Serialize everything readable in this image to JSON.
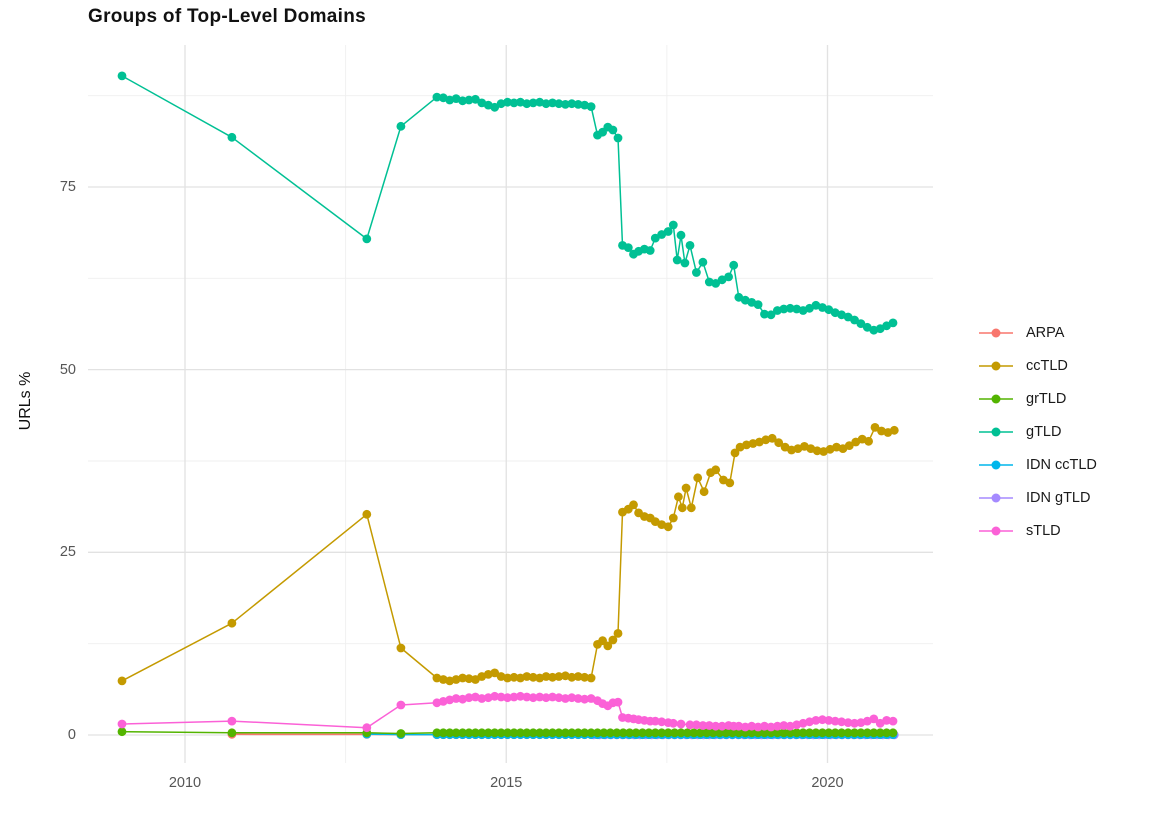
{
  "title": "Groups of Top-Level Domains",
  "axes": {
    "y_label": "URLs %",
    "y_ticks": [
      {
        "value": 0,
        "label": "0"
      },
      {
        "value": 25,
        "label": "25"
      },
      {
        "value": 50,
        "label": "50"
      },
      {
        "value": 75,
        "label": "75"
      }
    ],
    "y_minor": [
      12.5,
      37.5,
      62.5,
      87.5
    ],
    "x_ticks": [
      {
        "year": 2010,
        "label": "2010"
      },
      {
        "year": 2015,
        "label": "2015"
      },
      {
        "year": 2020,
        "label": "2020"
      }
    ],
    "x_minor_years": [
      2012.5,
      2017.5
    ]
  },
  "chart_data": {
    "type": "line",
    "title": "Groups of Top-Level Domains",
    "xlabel": "",
    "ylabel": "URLs %",
    "x_unit": "year",
    "xlim": [
      2008.6,
      2021.6
    ],
    "ylim": [
      0,
      92
    ],
    "grid": true,
    "legend_position": "right",
    "marker": "point",
    "draw_order": [
      "ARPA",
      "IDN gTLD",
      "IDN ccTLD",
      "grTLD",
      "ccTLD",
      "gTLD",
      "sTLD"
    ],
    "series": [
      {
        "name": "ARPA",
        "color": "#F8766D",
        "points": [
          [
            2010.73,
            0.1
          ],
          [
            2012.83,
            0.08
          ],
          [
            2013.36,
            0.05
          ]
        ],
        "runs": [
          {
            "x0": 2013.92,
            "dx": 0.1,
            "count": 72,
            "value": 0.04
          }
        ]
      },
      {
        "name": "ccTLD",
        "color": "#C49A00",
        "points": [
          [
            2009.02,
            7.4
          ],
          [
            2010.73,
            15.3
          ],
          [
            2012.83,
            30.2
          ],
          [
            2013.36,
            11.9
          ],
          [
            2013.92,
            7.8
          ],
          [
            2014.02,
            7.6
          ],
          [
            2014.12,
            7.4
          ],
          [
            2014.22,
            7.6
          ],
          [
            2014.32,
            7.8
          ],
          [
            2014.42,
            7.7
          ],
          [
            2014.52,
            7.6
          ],
          [
            2014.62,
            8.0
          ],
          [
            2014.72,
            8.3
          ],
          [
            2014.82,
            8.5
          ],
          [
            2014.92,
            8.0
          ],
          [
            2015.02,
            7.8
          ],
          [
            2015.12,
            7.9
          ],
          [
            2015.22,
            7.8
          ],
          [
            2015.32,
            8.0
          ],
          [
            2015.42,
            7.9
          ],
          [
            2015.52,
            7.8
          ],
          [
            2015.62,
            8.0
          ],
          [
            2015.72,
            7.9
          ],
          [
            2015.82,
            8.0
          ],
          [
            2015.92,
            8.1
          ],
          [
            2016.02,
            7.9
          ],
          [
            2016.12,
            8.0
          ],
          [
            2016.22,
            7.9
          ],
          [
            2016.32,
            7.8
          ],
          [
            2016.42,
            12.4
          ],
          [
            2016.5,
            12.9
          ],
          [
            2016.58,
            12.2
          ],
          [
            2016.66,
            13.0
          ],
          [
            2016.74,
            13.9
          ],
          [
            2016.81,
            30.5
          ],
          [
            2016.9,
            30.9
          ],
          [
            2016.98,
            31.5
          ],
          [
            2017.06,
            30.4
          ],
          [
            2017.15,
            29.9
          ],
          [
            2017.24,
            29.7
          ],
          [
            2017.32,
            29.2
          ],
          [
            2017.42,
            28.8
          ],
          [
            2017.52,
            28.5
          ],
          [
            2017.6,
            29.7
          ],
          [
            2017.68,
            32.6
          ],
          [
            2017.74,
            31.1
          ],
          [
            2017.8,
            33.8
          ],
          [
            2017.88,
            31.1
          ],
          [
            2017.98,
            35.2
          ],
          [
            2018.08,
            33.3
          ],
          [
            2018.18,
            35.9
          ],
          [
            2018.26,
            36.3
          ],
          [
            2018.38,
            34.9
          ],
          [
            2018.48,
            34.5
          ],
          [
            2018.56,
            38.6
          ],
          [
            2018.64,
            39.4
          ],
          [
            2018.74,
            39.7
          ],
          [
            2018.84,
            39.9
          ],
          [
            2018.94,
            40.1
          ],
          [
            2019.04,
            40.4
          ],
          [
            2019.14,
            40.6
          ],
          [
            2019.24,
            40.0
          ],
          [
            2019.34,
            39.4
          ],
          [
            2019.44,
            39.0
          ],
          [
            2019.54,
            39.2
          ],
          [
            2019.64,
            39.5
          ],
          [
            2019.74,
            39.2
          ],
          [
            2019.84,
            38.9
          ],
          [
            2019.94,
            38.8
          ],
          [
            2020.04,
            39.1
          ],
          [
            2020.14,
            39.4
          ],
          [
            2020.24,
            39.2
          ],
          [
            2020.34,
            39.6
          ],
          [
            2020.44,
            40.1
          ],
          [
            2020.54,
            40.5
          ],
          [
            2020.64,
            40.2
          ],
          [
            2020.74,
            42.1
          ],
          [
            2020.84,
            41.6
          ],
          [
            2020.94,
            41.4
          ],
          [
            2021.04,
            41.7
          ]
        ],
        "runs": []
      },
      {
        "name": "grTLD",
        "color": "#53B400",
        "points": [
          [
            2009.02,
            0.45
          ],
          [
            2010.73,
            0.3
          ],
          [
            2012.83,
            0.3
          ],
          [
            2013.36,
            0.2
          ]
        ],
        "runs": [
          {
            "x0": 2013.92,
            "dx": 0.1,
            "count": 72,
            "value": 0.3
          }
        ]
      },
      {
        "name": "gTLD",
        "color": "#00C094",
        "points": [
          [
            2009.02,
            90.2
          ],
          [
            2010.73,
            81.8
          ],
          [
            2012.83,
            67.9
          ],
          [
            2013.36,
            83.3
          ],
          [
            2013.92,
            87.3
          ],
          [
            2014.02,
            87.2
          ],
          [
            2014.12,
            86.9
          ],
          [
            2014.22,
            87.1
          ],
          [
            2014.32,
            86.8
          ],
          [
            2014.42,
            86.9
          ],
          [
            2014.52,
            87.0
          ],
          [
            2014.62,
            86.5
          ],
          [
            2014.72,
            86.2
          ],
          [
            2014.82,
            85.9
          ],
          [
            2014.92,
            86.4
          ],
          [
            2015.02,
            86.6
          ],
          [
            2015.12,
            86.5
          ],
          [
            2015.22,
            86.6
          ],
          [
            2015.32,
            86.4
          ],
          [
            2015.42,
            86.5
          ],
          [
            2015.52,
            86.6
          ],
          [
            2015.62,
            86.4
          ],
          [
            2015.72,
            86.5
          ],
          [
            2015.82,
            86.4
          ],
          [
            2015.92,
            86.3
          ],
          [
            2016.02,
            86.4
          ],
          [
            2016.12,
            86.3
          ],
          [
            2016.22,
            86.2
          ],
          [
            2016.32,
            86.0
          ],
          [
            2016.42,
            82.1
          ],
          [
            2016.5,
            82.5
          ],
          [
            2016.58,
            83.2
          ],
          [
            2016.66,
            82.8
          ],
          [
            2016.74,
            81.7
          ],
          [
            2016.81,
            67.0
          ],
          [
            2016.9,
            66.7
          ],
          [
            2016.98,
            65.8
          ],
          [
            2017.06,
            66.2
          ],
          [
            2017.15,
            66.5
          ],
          [
            2017.24,
            66.3
          ],
          [
            2017.32,
            68.0
          ],
          [
            2017.42,
            68.5
          ],
          [
            2017.52,
            68.9
          ],
          [
            2017.6,
            69.8
          ],
          [
            2017.66,
            65.0
          ],
          [
            2017.72,
            68.4
          ],
          [
            2017.78,
            64.6
          ],
          [
            2017.86,
            67.0
          ],
          [
            2017.96,
            63.3
          ],
          [
            2018.06,
            64.7
          ],
          [
            2018.16,
            62.0
          ],
          [
            2018.26,
            61.8
          ],
          [
            2018.36,
            62.3
          ],
          [
            2018.46,
            62.7
          ],
          [
            2018.54,
            64.3
          ],
          [
            2018.62,
            59.9
          ],
          [
            2018.72,
            59.5
          ],
          [
            2018.82,
            59.2
          ],
          [
            2018.92,
            58.9
          ],
          [
            2019.02,
            57.6
          ],
          [
            2019.12,
            57.5
          ],
          [
            2019.22,
            58.1
          ],
          [
            2019.32,
            58.3
          ],
          [
            2019.42,
            58.4
          ],
          [
            2019.52,
            58.3
          ],
          [
            2019.62,
            58.1
          ],
          [
            2019.72,
            58.4
          ],
          [
            2019.82,
            58.8
          ],
          [
            2019.92,
            58.5
          ],
          [
            2020.02,
            58.2
          ],
          [
            2020.12,
            57.8
          ],
          [
            2020.22,
            57.5
          ],
          [
            2020.32,
            57.2
          ],
          [
            2020.42,
            56.8
          ],
          [
            2020.52,
            56.3
          ],
          [
            2020.62,
            55.8
          ],
          [
            2020.72,
            55.4
          ],
          [
            2020.82,
            55.6
          ],
          [
            2020.92,
            56.0
          ],
          [
            2021.02,
            56.4
          ]
        ],
        "runs": []
      },
      {
        "name": "IDN ccTLD",
        "color": "#00B6EB",
        "points": [
          [
            2012.83,
            0.12
          ],
          [
            2013.36,
            0.06
          ]
        ],
        "runs": [
          {
            "x0": 2013.92,
            "dx": 0.1,
            "count": 72,
            "value": 0.06
          }
        ]
      },
      {
        "name": "IDN gTLD",
        "color": "#A58AFF",
        "points": [],
        "runs": [
          {
            "x0": 2016.36,
            "dx": 0.09,
            "count": 53,
            "value": 0.02
          }
        ]
      },
      {
        "name": "sTLD",
        "color": "#FB61D7",
        "points": [
          [
            2009.02,
            1.5
          ],
          [
            2010.73,
            1.9
          ],
          [
            2012.83,
            1.0
          ],
          [
            2013.36,
            4.1
          ],
          [
            2013.92,
            4.4
          ],
          [
            2014.02,
            4.6
          ],
          [
            2014.12,
            4.8
          ],
          [
            2014.22,
            5.0
          ],
          [
            2014.32,
            4.9
          ],
          [
            2014.42,
            5.1
          ],
          [
            2014.52,
            5.2
          ],
          [
            2014.62,
            5.0
          ],
          [
            2014.72,
            5.1
          ],
          [
            2014.82,
            5.3
          ],
          [
            2014.92,
            5.2
          ],
          [
            2015.02,
            5.1
          ],
          [
            2015.12,
            5.2
          ],
          [
            2015.22,
            5.3
          ],
          [
            2015.32,
            5.2
          ],
          [
            2015.42,
            5.1
          ],
          [
            2015.52,
            5.2
          ],
          [
            2015.62,
            5.1
          ],
          [
            2015.72,
            5.2
          ],
          [
            2015.82,
            5.1
          ],
          [
            2015.92,
            5.0
          ],
          [
            2016.02,
            5.1
          ],
          [
            2016.12,
            5.0
          ],
          [
            2016.22,
            4.9
          ],
          [
            2016.32,
            5.0
          ],
          [
            2016.42,
            4.7
          ],
          [
            2016.5,
            4.3
          ],
          [
            2016.58,
            4.0
          ],
          [
            2016.66,
            4.4
          ],
          [
            2016.74,
            4.5
          ],
          [
            2016.81,
            2.4
          ],
          [
            2016.9,
            2.3
          ],
          [
            2016.98,
            2.2
          ],
          [
            2017.06,
            2.1
          ],
          [
            2017.15,
            2.0
          ],
          [
            2017.24,
            1.9
          ],
          [
            2017.32,
            1.9
          ],
          [
            2017.42,
            1.8
          ],
          [
            2017.52,
            1.7
          ],
          [
            2017.6,
            1.6
          ],
          [
            2017.72,
            1.5
          ],
          [
            2017.86,
            1.4
          ],
          [
            2017.96,
            1.4
          ],
          [
            2018.06,
            1.3
          ],
          [
            2018.16,
            1.3
          ],
          [
            2018.26,
            1.2
          ],
          [
            2018.36,
            1.2
          ],
          [
            2018.46,
            1.3
          ],
          [
            2018.54,
            1.2
          ],
          [
            2018.62,
            1.2
          ],
          [
            2018.72,
            1.1
          ],
          [
            2018.82,
            1.2
          ],
          [
            2018.92,
            1.1
          ],
          [
            2019.02,
            1.2
          ],
          [
            2019.12,
            1.1
          ],
          [
            2019.22,
            1.2
          ],
          [
            2019.32,
            1.3
          ],
          [
            2019.42,
            1.2
          ],
          [
            2019.52,
            1.4
          ],
          [
            2019.62,
            1.6
          ],
          [
            2019.72,
            1.8
          ],
          [
            2019.82,
            2.0
          ],
          [
            2019.92,
            2.1
          ],
          [
            2020.02,
            2.0
          ],
          [
            2020.12,
            1.9
          ],
          [
            2020.22,
            1.8
          ],
          [
            2020.32,
            1.7
          ],
          [
            2020.42,
            1.6
          ],
          [
            2020.52,
            1.7
          ],
          [
            2020.62,
            1.9
          ],
          [
            2020.72,
            2.2
          ],
          [
            2020.82,
            1.6
          ],
          [
            2020.92,
            2.0
          ],
          [
            2021.02,
            1.9
          ]
        ],
        "runs": []
      }
    ]
  }
}
